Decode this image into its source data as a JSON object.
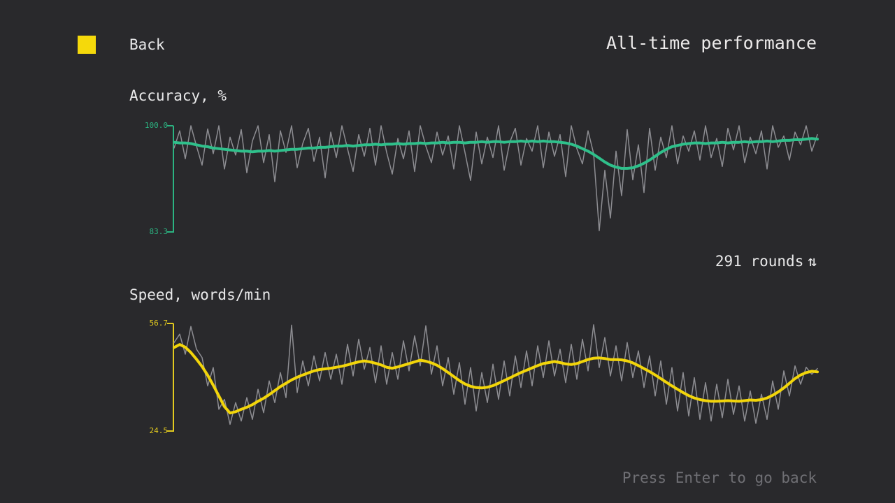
{
  "header": {
    "back_label": "Back",
    "title": "All-time performance"
  },
  "sections": {
    "accuracy": {
      "label": "Accuracy, %",
      "y_max": "100.0",
      "y_min": "83.3"
    },
    "speed": {
      "label": "Speed, words/min",
      "y_max": "56.7",
      "y_min": "24.5"
    }
  },
  "rounds": {
    "label": "291 rounds",
    "icon": "⇅"
  },
  "footer": {
    "hint": "Press Enter to go back"
  },
  "colors": {
    "background": "#29292c",
    "accent_yellow": "#f5d90b",
    "accent_green": "#2fc08b",
    "raw_gray": "#8d8d92",
    "muted_text": "#6f6f74",
    "text": "#e9e9ea"
  },
  "chart_data": [
    {
      "type": "line",
      "title": "Accuracy, %",
      "ylim": [
        83.3,
        100.0
      ],
      "x_count": 116,
      "x_meaning": "round index over 291 rounds",
      "grid": false,
      "legend": "none",
      "axis_labels": {
        "top": "100.0",
        "bottom": "83.3"
      },
      "series": [
        {
          "name": "raw",
          "color": "#8d8d92",
          "width": 1.5,
          "values": [
            96.5,
            99.2,
            94.8,
            100,
            96.8,
            93.8,
            99.5,
            95.6,
            100,
            93.2,
            98.2,
            95.4,
            99.4,
            92.6,
            97.6,
            100,
            94.2,
            98.6,
            91.2,
            99.2,
            95.8,
            100,
            93.4,
            97.2,
            99.6,
            94.4,
            98.2,
            91.8,
            99.0,
            95.0,
            100,
            96.4,
            92.8,
            98.6,
            95.2,
            99.6,
            93.8,
            100,
            95.8,
            92.4,
            98.0,
            94.8,
            99.2,
            92.8,
            100,
            96.8,
            94.2,
            99.0,
            95.4,
            98.4,
            93.2,
            100,
            95.8,
            91.4,
            99.0,
            94.0,
            98.2,
            95.0,
            100,
            93.0,
            97.4,
            99.6,
            93.8,
            98.0,
            96.0,
            100,
            93.4,
            99.0,
            95.2,
            98.6,
            92.0,
            100,
            96.4,
            94.0,
            99.2,
            95.6,
            83.5,
            93.0,
            85.5,
            96.0,
            89.0,
            99.4,
            91.5,
            97.0,
            89.5,
            99.6,
            93.0,
            98.2,
            95.0,
            100,
            94.0,
            98.4,
            96.0,
            99.2,
            94.6,
            100,
            95.0,
            98.0,
            93.6,
            99.6,
            96.2,
            100,
            94.2,
            98.2,
            95.6,
            99.2,
            93.2,
            100,
            96.6,
            98.4,
            94.6,
            99.0,
            97.0,
            100,
            96.0,
            98.6
          ]
        },
        {
          "name": "moving-average",
          "color": "#2fc08b",
          "width": 4,
          "values": [
            97.4,
            97.3,
            97.3,
            97.2,
            97.0,
            96.8,
            96.7,
            96.5,
            96.4,
            96.3,
            96.2,
            96.1,
            96.0,
            96.0,
            95.9,
            96.0,
            96.0,
            96.1,
            96.0,
            96.1,
            96.2,
            96.3,
            96.3,
            96.4,
            96.5,
            96.5,
            96.6,
            96.6,
            96.7,
            96.8,
            96.8,
            96.9,
            96.8,
            96.9,
            97.0,
            97.0,
            97.1,
            97.0,
            97.1,
            97.1,
            97.2,
            97.1,
            97.2,
            97.2,
            97.3,
            97.2,
            97.3,
            97.3,
            97.4,
            97.3,
            97.4,
            97.4,
            97.3,
            97.4,
            97.4,
            97.5,
            97.4,
            97.5,
            97.5,
            97.4,
            97.5,
            97.5,
            97.6,
            97.5,
            97.6,
            97.5,
            97.6,
            97.5,
            97.5,
            97.4,
            97.3,
            97.1,
            96.8,
            96.4,
            96.0,
            95.5,
            94.9,
            94.3,
            93.8,
            93.5,
            93.3,
            93.3,
            93.4,
            93.7,
            94.1,
            94.6,
            95.2,
            95.8,
            96.3,
            96.7,
            96.9,
            97.1,
            97.2,
            97.3,
            97.3,
            97.2,
            97.3,
            97.3,
            97.4,
            97.3,
            97.4,
            97.4,
            97.5,
            97.4,
            97.5,
            97.5,
            97.6,
            97.5,
            97.6,
            97.7,
            97.7,
            97.8,
            97.8,
            97.9,
            98.0,
            97.9
          ]
        }
      ]
    },
    {
      "type": "line",
      "title": "Speed, words/min",
      "ylim": [
        24.5,
        56.7
      ],
      "x_count": 116,
      "x_meaning": "round index over 291 rounds",
      "grid": false,
      "legend": "none",
      "axis_labels": {
        "top": "56.7",
        "bottom": "24.5"
      },
      "series": [
        {
          "name": "raw",
          "color": "#8d8d92",
          "width": 1.5,
          "values": [
            51.0,
            53.5,
            47.5,
            55.8,
            49.0,
            46.5,
            38.0,
            43.5,
            31.0,
            34.0,
            26.5,
            33.0,
            27.5,
            34.5,
            28.0,
            37.0,
            30.0,
            39.5,
            33.0,
            42.0,
            34.5,
            56.2,
            36.0,
            45.5,
            38.0,
            47.0,
            39.5,
            48.0,
            40.0,
            47.5,
            38.5,
            50.5,
            41.0,
            52.0,
            43.0,
            49.5,
            39.0,
            50.0,
            38.5,
            48.0,
            40.0,
            51.5,
            42.5,
            53.0,
            44.0,
            56.0,
            41.5,
            50.0,
            38.0,
            46.5,
            35.5,
            45.0,
            32.5,
            43.5,
            30.5,
            42.0,
            33.0,
            44.5,
            34.0,
            45.5,
            35.0,
            47.0,
            37.5,
            48.5,
            38.0,
            50.0,
            40.5,
            51.5,
            41.0,
            49.0,
            39.0,
            50.5,
            40.0,
            52.0,
            42.5,
            56.3,
            43.5,
            52.5,
            41.0,
            50.0,
            39.5,
            51.0,
            40.5,
            48.5,
            37.5,
            47.0,
            35.0,
            45.5,
            32.5,
            43.5,
            30.5,
            42.0,
            29.0,
            40.5,
            28.0,
            39.0,
            27.5,
            38.5,
            28.5,
            40.0,
            29.5,
            38.0,
            27.5,
            36.5,
            26.8,
            35.5,
            28.0,
            39.5,
            31.0,
            42.5,
            35.0,
            44.0,
            38.5,
            43.6,
            41.5,
            43.2
          ]
        },
        {
          "name": "moving-average",
          "color": "#f2d50a",
          "width": 4,
          "values": [
            49.5,
            50.4,
            49.6,
            48.0,
            46.0,
            43.8,
            41.2,
            38.2,
            35.0,
            31.8,
            29.9,
            30.3,
            31.0,
            31.6,
            32.4,
            33.4,
            34.3,
            35.4,
            36.6,
            37.8,
            38.8,
            39.8,
            40.6,
            41.3,
            41.9,
            42.5,
            42.9,
            43.1,
            43.3,
            43.6,
            43.9,
            44.3,
            44.8,
            45.2,
            45.5,
            45.2,
            44.8,
            44.3,
            43.6,
            43.3,
            43.7,
            44.2,
            44.7,
            45.2,
            45.7,
            45.4,
            44.9,
            44.2,
            43.2,
            42.0,
            40.8,
            39.6,
            38.6,
            37.9,
            37.5,
            37.4,
            37.6,
            38.1,
            38.8,
            39.6,
            40.4,
            41.2,
            42.0,
            42.7,
            43.4,
            44.1,
            44.7,
            45.0,
            45.3,
            45.0,
            44.6,
            44.4,
            44.7,
            45.3,
            45.9,
            46.3,
            46.4,
            46.2,
            45.9,
            45.9,
            45.8,
            45.5,
            44.9,
            44.1,
            43.2,
            42.3,
            41.3,
            40.2,
            39.1,
            38.0,
            37.0,
            36.0,
            35.1,
            34.4,
            33.9,
            33.6,
            33.4,
            33.4,
            33.5,
            33.6,
            33.5,
            33.4,
            33.6,
            33.8,
            33.7,
            33.9,
            34.4,
            35.2,
            36.2,
            37.4,
            38.8,
            40.2,
            41.3,
            42.0,
            42.4,
            42.2
          ]
        }
      ]
    }
  ]
}
